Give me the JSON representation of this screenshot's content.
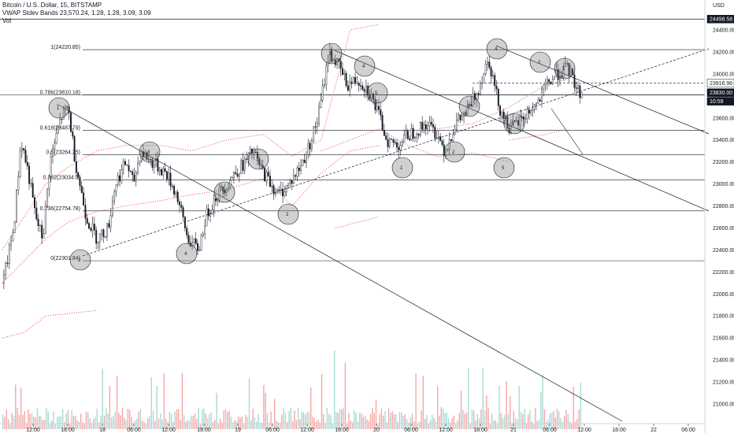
{
  "header": {
    "symbol_line": "Bitcoin / U.S. Dollar, 15, BITSTAMP",
    "indicator_line": "VWAP Stdev Bands  23,570.24, 1.28, 1.28, 3.09, 3.09",
    "volume_line": "Vol"
  },
  "price_scale": {
    "currency": "USD",
    "ticks": [
      "24400.00",
      "24200.00",
      "24000.00",
      "23800.00",
      "23600.00",
      "23400.00",
      "23200.00",
      "23000.00",
      "22800.00",
      "22600.00",
      "22400.00",
      "22200.00",
      "22000.00",
      "21800.00",
      "21600.00",
      "21400.00",
      "21200.00",
      "21000.00"
    ],
    "badges": [
      {
        "text": "24498.58",
        "color": "#131722",
        "text_color": "#ffffff",
        "value": 24498.58
      },
      {
        "text": "23916.96",
        "color": "#ffffff",
        "text_color": "#131722",
        "value": 23916.96
      },
      {
        "text": "23830.00",
        "color": "#131722",
        "text_color": "#ffffff",
        "value": 23830.0
      },
      {
        "text": "10:59",
        "color": "#131722",
        "text_color": "#ffffff",
        "value": 23775
      }
    ]
  },
  "time_scale": {
    "ticks": [
      "12:00",
      "18:00",
      "18",
      "06:00",
      "12:00",
      "18:00",
      "19",
      "06:00",
      "12:00",
      "18:00",
      "20",
      "06:00",
      "12:00",
      "18:00",
      "21",
      "06:00",
      "12:00",
      "18:00",
      "22",
      "06:00"
    ]
  },
  "fib_levels": [
    {
      "label": "1(24220.85)",
      "value": 24220.85
    },
    {
      "label": "0.786(23810.18)",
      "value": 23810.18
    },
    {
      "label": "0.618(23487.79)",
      "value": 23487.79
    },
    {
      "label": "0.5(23264.25)",
      "value": 23264.25
    },
    {
      "label": "0.382(23034.9)",
      "value": 23034.9
    },
    {
      "label": "0.236(22754.78)",
      "value": 22754.78
    },
    {
      "label": "0(22301.84)",
      "value": 22301.84
    }
  ],
  "wave_labels": [
    "1",
    "2",
    "3",
    "4",
    "5",
    "1",
    "2",
    "3",
    "4",
    "5",
    "1",
    "2",
    "3",
    "4",
    "5",
    "1",
    "2",
    "1",
    "2",
    "3",
    "4",
    "5",
    "1"
  ],
  "colors": {
    "up": "#26a69a",
    "down": "#ef5350",
    "vol_up": "#a8dad4",
    "vol_down": "#f5a7a6",
    "band": "#e53935",
    "line": "#131722"
  },
  "chart_data": {
    "type": "candlestick",
    "title": "Bitcoin / U.S. Dollar, 15, BITSTAMP",
    "ylim": [
      20850,
      24580
    ],
    "grid": false,
    "legend": "top-left",
    "close_path_x_hours": [
      0,
      3,
      5,
      7,
      9,
      11,
      13,
      16,
      18,
      20,
      23,
      26,
      29,
      31,
      34,
      36,
      38,
      41,
      43,
      45,
      48,
      51,
      54,
      56,
      59,
      62,
      64,
      67,
      69,
      71,
      74,
      76,
      79,
      82,
      84,
      87,
      90,
      93,
      95,
      98,
      101,
      104,
      106,
      109,
      112,
      115,
      117,
      120,
      122,
      125,
      128,
      131,
      134,
      137,
      140,
      142,
      145,
      148,
      150,
      153,
      156,
      159
    ],
    "close_path_y": [
      22100,
      22600,
      23400,
      23100,
      22700,
      22500,
      23200,
      23600,
      23700,
      23200,
      22700,
      22500,
      22600,
      23000,
      23200,
      23000,
      23300,
      23200,
      23150,
      23100,
      22900,
      22500,
      22400,
      22700,
      22900,
      23000,
      23100,
      23200,
      23300,
      23150,
      23000,
      22900,
      23000,
      23150,
      23300,
      23600,
      24200,
      24050,
      23900,
      23950,
      23850,
      23600,
      23400,
      23350,
      23450,
      23500,
      23550,
      23450,
      23300,
      23550,
      23650,
      23850,
      24150,
      23700,
      23500,
      23550,
      23650,
      23750,
      23900,
      24000,
      24050,
      23830
    ]
  }
}
